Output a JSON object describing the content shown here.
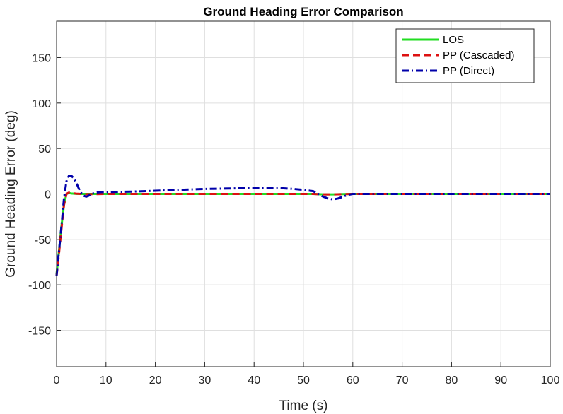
{
  "chart_data": {
    "type": "line",
    "title": "Ground Heading Error Comparison",
    "xlabel": "Time (s)",
    "ylabel": "Ground Heading Error (deg)",
    "xlim": [
      0,
      100
    ],
    "ylim": [
      -190,
      190
    ],
    "xticks": [
      0,
      10,
      20,
      30,
      40,
      50,
      60,
      70,
      80,
      90,
      100
    ],
    "yticks": [
      -150,
      -100,
      -50,
      0,
      50,
      100,
      150
    ],
    "grid": true,
    "legend_position": "top-right",
    "series": [
      {
        "name": "LOS",
        "color": "#22dd22",
        "dash": "solid",
        "x": [
          0,
          0.5,
          1,
          1.5,
          2,
          2.5,
          3,
          4,
          5,
          6,
          8,
          10,
          20,
          30,
          40,
          50,
          52,
          54,
          56,
          58,
          60,
          70,
          80,
          90,
          100
        ],
        "y": [
          -88,
          -62,
          -35,
          -12,
          0,
          1,
          0.5,
          0.1,
          0,
          0,
          0,
          0,
          0,
          0,
          0,
          0,
          0,
          -0.5,
          -0.5,
          -0.2,
          0,
          0,
          0,
          0,
          0
        ]
      },
      {
        "name": "PP (Cascaded)",
        "color": "#dd1111",
        "dash": "dashed",
        "x": [
          0,
          0.5,
          1,
          1.5,
          2,
          2.5,
          3,
          4,
          5,
          6,
          8,
          10,
          20,
          30,
          40,
          50,
          52,
          54,
          56,
          58,
          60,
          70,
          80,
          90,
          100
        ],
        "y": [
          -90,
          -65,
          -38,
          -12,
          0,
          1.5,
          1,
          0.3,
          0,
          -0.3,
          -0.2,
          0,
          0,
          0,
          0,
          0,
          0,
          -0.5,
          -0.5,
          -0.2,
          0,
          0,
          0,
          0,
          0
        ]
      },
      {
        "name": "PP (Direct)",
        "color": "#0000aa",
        "dash": "dashdot",
        "x": [
          0,
          0.5,
          1,
          1.5,
          2,
          2.5,
          3,
          3.5,
          4,
          4.5,
          5,
          5.5,
          6,
          6.5,
          7,
          8,
          9,
          10,
          15,
          20,
          25,
          30,
          35,
          40,
          45,
          48,
          50,
          52,
          53,
          54,
          55,
          56,
          57,
          58,
          59,
          60,
          65,
          70,
          80,
          90,
          100
        ],
        "y": [
          -90,
          -62,
          -35,
          -5,
          14,
          20,
          20,
          17,
          12,
          6,
          1,
          -2,
          -3,
          -2,
          0,
          1.5,
          2,
          2,
          2.5,
          3.5,
          4.5,
          5.5,
          6,
          6.5,
          6.5,
          5.5,
          4.5,
          3,
          0,
          -3,
          -5,
          -6,
          -5,
          -3,
          -1,
          0,
          0,
          0,
          0,
          0,
          0
        ]
      }
    ]
  }
}
